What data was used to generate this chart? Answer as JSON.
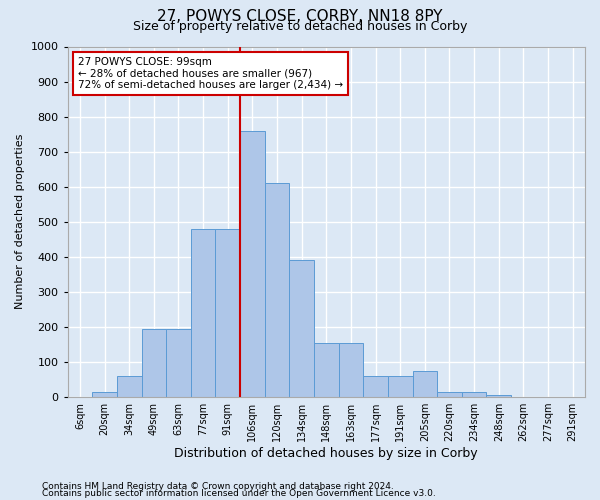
{
  "title1": "27, POWYS CLOSE, CORBY, NN18 8PY",
  "title2": "Size of property relative to detached houses in Corby",
  "xlabel": "Distribution of detached houses by size in Corby",
  "ylabel": "Number of detached properties",
  "categories": [
    "6sqm",
    "20sqm",
    "34sqm",
    "49sqm",
    "63sqm",
    "77sqm",
    "91sqm",
    "106sqm",
    "120sqm",
    "134sqm",
    "148sqm",
    "163sqm",
    "177sqm",
    "191sqm",
    "205sqm",
    "220sqm",
    "234sqm",
    "248sqm",
    "262sqm",
    "277sqm",
    "291sqm"
  ],
  "values": [
    0,
    15,
    60,
    195,
    195,
    480,
    480,
    760,
    610,
    390,
    155,
    155,
    60,
    60,
    75,
    15,
    15,
    5,
    0,
    0,
    0
  ],
  "bar_color": "#aec6e8",
  "bar_edge_color": "#5b9bd5",
  "marker_line_index": 7,
  "annotation_text": "27 POWYS CLOSE: 99sqm\n← 28% of detached houses are smaller (967)\n72% of semi-detached houses are larger (2,434) →",
  "annotation_box_color": "#ffffff",
  "annotation_box_edge": "#cc0000",
  "marker_line_color": "#cc0000",
  "ylim": [
    0,
    1000
  ],
  "yticks": [
    0,
    100,
    200,
    300,
    400,
    500,
    600,
    700,
    800,
    900,
    1000
  ],
  "footer1": "Contains HM Land Registry data © Crown copyright and database right 2024.",
  "footer2": "Contains public sector information licensed under the Open Government Licence v3.0.",
  "bg_color": "#dce8f5",
  "grid_color": "#ffffff"
}
